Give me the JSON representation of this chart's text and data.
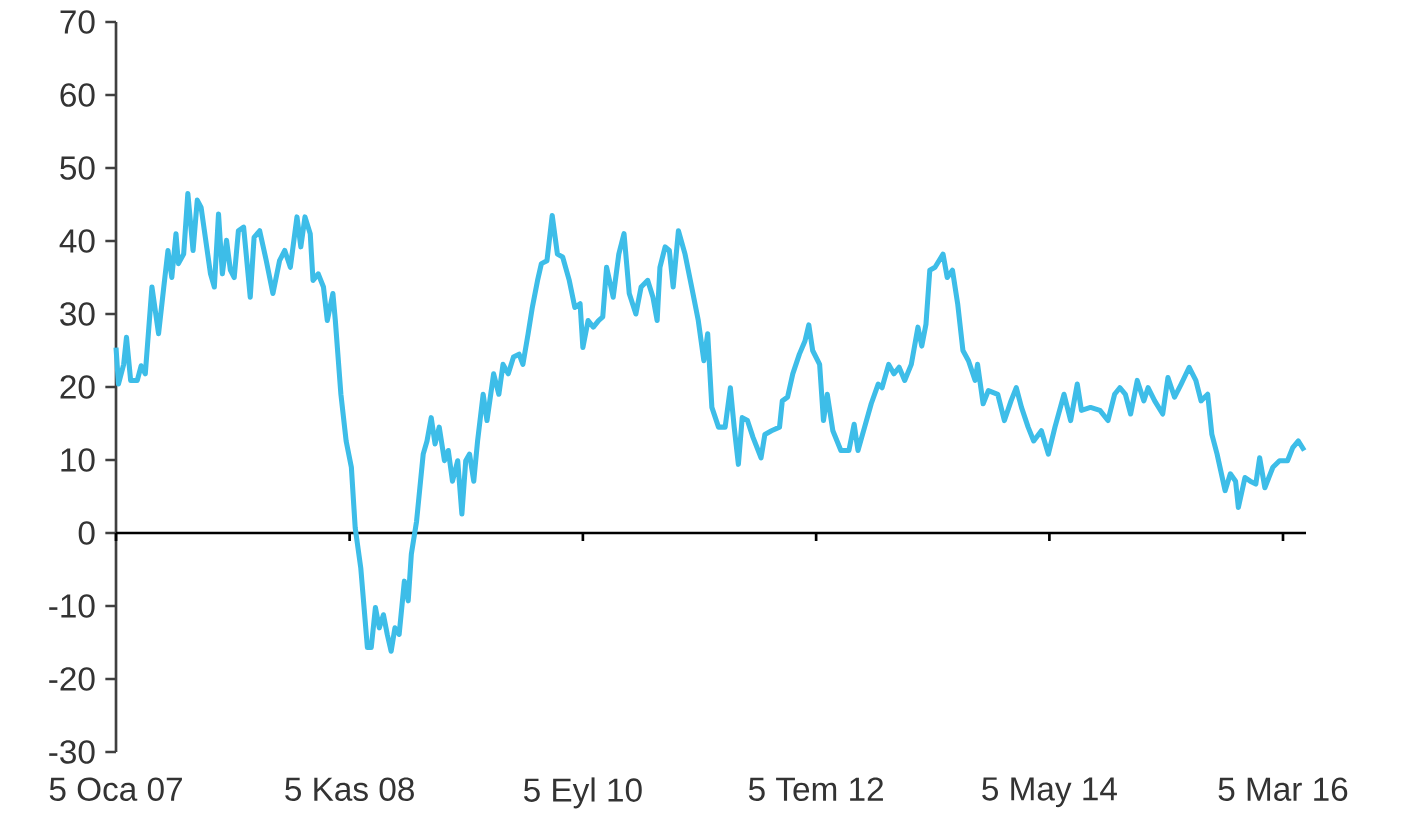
{
  "chart_data": {
    "type": "line",
    "color": "#3dbde8",
    "xlim": [
      "2007-01-05",
      "2016-05-10"
    ],
    "xticks": [
      {
        "value": "2007-01-05",
        "label": "5 Oca 07"
      },
      {
        "value": "2008-11-05",
        "label": "5 Kas 08"
      },
      {
        "value": "2010-09-05",
        "label": "5 Eyl 10"
      },
      {
        "value": "2012-07-05",
        "label": "5 Tem 12"
      },
      {
        "value": "2014-05-05",
        "label": "5 May 14"
      },
      {
        "value": "2016-03-05",
        "label": "5 Mar 16"
      }
    ],
    "ylim": [
      -30,
      70
    ],
    "yticks": [
      -30,
      -20,
      -10,
      0,
      10,
      20,
      30,
      40,
      50,
      60,
      70
    ],
    "x": [
      "2007-01-05",
      "2007-01-12",
      "2007-01-27",
      "2007-02-04",
      "2007-02-16",
      "2007-03-07",
      "2007-03-18",
      "2007-03-30",
      "2007-04-18",
      "2007-05-07",
      "2007-05-22",
      "2007-06-03",
      "2007-06-14",
      "2007-06-26",
      "2007-07-03",
      "2007-07-18",
      "2007-07-30",
      "2007-08-14",
      "2007-08-26",
      "2007-09-06",
      "2007-10-03",
      "2007-10-14",
      "2007-10-26",
      "2007-11-06",
      "2007-11-18",
      "2007-11-29",
      "2007-12-10",
      "2007-12-22",
      "2008-01-06",
      "2008-01-25",
      "2008-02-05",
      "2008-02-21",
      "2008-03-11",
      "2008-03-30",
      "2008-04-18",
      "2008-05-03",
      "2008-05-19",
      "2008-06-07",
      "2008-06-18",
      "2008-06-30",
      "2008-07-15",
      "2008-07-23",
      "2008-08-07",
      "2008-08-22",
      "2008-09-02",
      "2008-09-18",
      "2008-09-25",
      "2008-10-11",
      "2008-10-26",
      "2008-11-10",
      "2008-11-21",
      "2008-12-07",
      "2008-12-26",
      "2009-01-06",
      "2009-01-18",
      "2009-01-29",
      "2009-02-10",
      "2009-02-21",
      "2009-03-04",
      "2009-03-15",
      "2009-03-27",
      "2009-04-11",
      "2009-04-22",
      "2009-05-01",
      "2009-05-16",
      "2009-06-04",
      "2009-06-15",
      "2009-06-27",
      "2009-07-08",
      "2009-07-20",
      "2009-08-04",
      "2009-08-15",
      "2009-08-27",
      "2009-09-11",
      "2009-09-23",
      "2009-10-04",
      "2009-10-15",
      "2009-10-27",
      "2009-11-07",
      "2009-11-23",
      "2009-12-04",
      "2009-12-23",
      "2010-01-07",
      "2010-01-19",
      "2010-02-03",
      "2010-02-18",
      "2010-03-06",
      "2010-03-17",
      "2010-04-01",
      "2010-04-13",
      "2010-04-28",
      "2010-05-09",
      "2010-05-25",
      "2010-06-09",
      "2010-06-24",
      "2010-07-09",
      "2010-07-28",
      "2010-08-13",
      "2010-08-28",
      "2010-09-05",
      "2010-09-20",
      "2010-10-05",
      "2010-10-20",
      "2010-11-01",
      "2010-11-12",
      "2010-12-01",
      "2010-12-17",
      "2011-01-01",
      "2011-01-16",
      "2011-02-04",
      "2011-02-19",
      "2011-03-10",
      "2011-03-25",
      "2011-04-06",
      "2011-04-14",
      "2011-04-29",
      "2011-05-11",
      "2011-05-22",
      "2011-06-06",
      "2011-06-25",
      "2011-07-14",
      "2011-08-02",
      "2011-08-18",
      "2011-08-29",
      "2011-09-10",
      "2011-09-29",
      "2011-10-18",
      "2011-11-02",
      "2011-11-13",
      "2011-11-25",
      "2011-12-06",
      "2011-12-21",
      "2012-01-06",
      "2012-01-29",
      "2012-02-09",
      "2012-02-28",
      "2012-03-22",
      "2012-03-30",
      "2012-04-14",
      "2012-04-29",
      "2012-05-18",
      "2012-06-03",
      "2012-06-14",
      "2012-06-25",
      "2012-07-15",
      "2012-07-26",
      "2012-08-06",
      "2012-08-22",
      "2012-09-14",
      "2012-10-07",
      "2012-10-22",
      "2012-11-02",
      "2012-11-21",
      "2012-12-10",
      "2012-12-30",
      "2013-01-10",
      "2013-01-29",
      "2013-02-13",
      "2013-02-28",
      "2013-03-16",
      "2013-04-04",
      "2013-04-23",
      "2013-05-04",
      "2013-05-16",
      "2013-05-27",
      "2013-06-11",
      "2013-07-04",
      "2013-07-16",
      "2013-07-31",
      "2013-08-15",
      "2013-08-30",
      "2013-09-15",
      "2013-10-04",
      "2013-10-11",
      "2013-10-27",
      "2013-11-11",
      "2013-12-08",
      "2013-12-27",
      "2014-01-15",
      "2014-01-30",
      "2014-02-14",
      "2014-03-05",
      "2014-03-21",
      "2014-04-12",
      "2014-05-02",
      "2014-05-21",
      "2014-06-16",
      "2014-07-05",
      "2014-07-24",
      "2014-08-05",
      "2014-08-31",
      "2014-09-27",
      "2014-10-20",
      "2014-11-08",
      "2014-11-23",
      "2014-12-09",
      "2014-12-24",
      "2015-01-12",
      "2015-01-31",
      "2015-02-12",
      "2015-03-03",
      "2015-03-26",
      "2015-04-10",
      "2015-04-29",
      "2015-05-18",
      "2015-06-10",
      "2015-06-29",
      "2015-07-14",
      "2015-08-02",
      "2015-08-14",
      "2015-08-29",
      "2015-09-21",
      "2015-10-06",
      "2015-10-21",
      "2015-10-29",
      "2015-11-17",
      "2015-12-02",
      "2015-12-18",
      "2015-12-29",
      "2016-01-13",
      "2016-02-05",
      "2016-02-24",
      "2016-03-18",
      "2016-04-02",
      "2016-04-18",
      "2016-05-05"
    ],
    "values": [
      25.4,
      20.4,
      23.1,
      26.8,
      20.9,
      20.9,
      22.9,
      21.8,
      33.7,
      27.3,
      33.7,
      38.7,
      35.0,
      41.0,
      36.9,
      38.2,
      46.5,
      38.7,
      45.6,
      44.6,
      35.5,
      33.7,
      43.7,
      35.5,
      40.1,
      36.0,
      35.0,
      41.4,
      41.9,
      32.3,
      40.5,
      41.4,
      37.3,
      32.8,
      37.3,
      38.7,
      36.4,
      43.3,
      39.2,
      43.3,
      41.0,
      34.6,
      35.5,
      33.7,
      29.1,
      32.8,
      29.1,
      19.0,
      12.6,
      9.0,
      0.7,
      -4.8,
      -15.7,
      -15.7,
      -10.2,
      -13.0,
      -11.2,
      -13.9,
      -16.2,
      -13.0,
      -13.9,
      -6.6,
      -9.3,
      -2.9,
      1.6,
      10.8,
      12.6,
      15.8,
      12.2,
      14.5,
      9.9,
      11.3,
      7.1,
      9.9,
      2.6,
      9.9,
      10.8,
      7.1,
      12.6,
      19.0,
      15.4,
      21.8,
      19.0,
      23.1,
      21.8,
      24.1,
      24.5,
      23.1,
      27.3,
      30.9,
      34.6,
      36.9,
      37.3,
      43.5,
      38.2,
      37.8,
      34.6,
      30.9,
      31.4,
      25.4,
      29.1,
      28.2,
      29.1,
      29.6,
      36.4,
      32.3,
      38.2,
      41.0,
      32.8,
      30.0,
      33.7,
      34.6,
      32.3,
      29.1,
      36.4,
      39.2,
      38.7,
      33.7,
      41.4,
      38.2,
      33.7,
      29.1,
      23.6,
      27.3,
      17.2,
      14.5,
      14.5,
      19.9,
      14.5,
      9.4,
      15.8,
      15.4,
      13.1,
      10.3,
      13.5,
      14.0,
      14.5,
      18.1,
      18.6,
      21.8,
      24.5,
      26.3,
      28.5,
      25.0,
      23.1,
      15.4,
      19.0,
      14.0,
      11.3,
      11.3,
      14.9,
      11.3,
      14.5,
      17.7,
      20.4,
      19.9,
      23.1,
      21.8,
      22.7,
      20.9,
      23.1,
      28.2,
      25.6,
      28.6,
      36.0,
      36.4,
      38.2,
      35.0,
      36.0,
      31.4,
      25.0,
      23.6,
      20.9,
      23.1,
      17.7,
      19.5,
      19.0,
      15.4,
      18.1,
      19.9,
      17.2,
      14.5,
      12.6,
      14.0,
      10.8,
      14.5,
      19.0,
      15.4,
      20.4,
      16.8,
      17.2,
      16.8,
      15.4,
      19.0,
      19.9,
      19.0,
      16.3,
      20.9,
      18.1,
      19.9,
      18.1,
      16.3,
      21.3,
      18.6,
      20.4,
      22.7,
      20.9,
      18.1,
      19.0,
      13.5,
      10.8,
      5.8,
      8.1,
      7.1,
      3.5,
      7.6,
      7.1,
      6.7,
      10.3,
      6.2,
      9.0,
      9.9,
      9.9,
      11.7,
      12.6,
      11.3
    ]
  }
}
